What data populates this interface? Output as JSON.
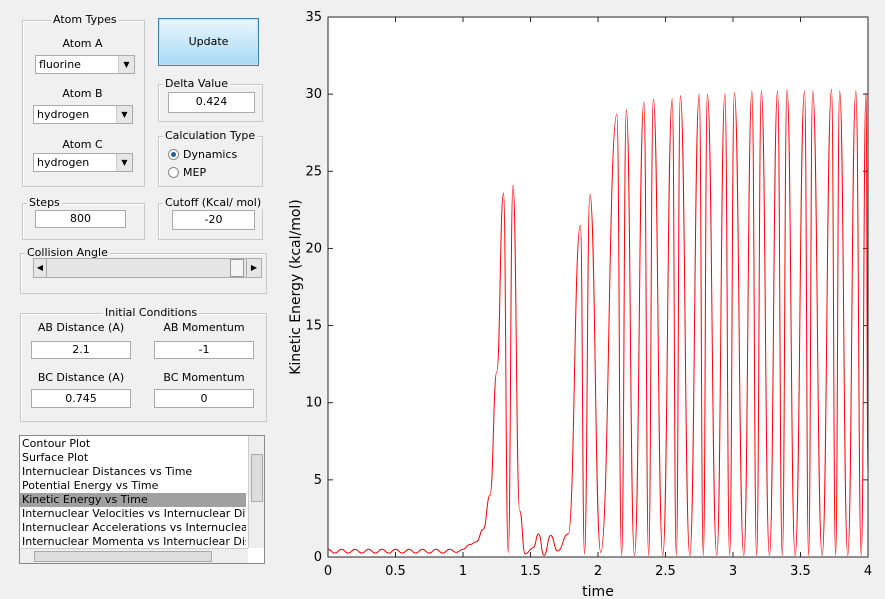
{
  "atom_types": {
    "title": "Atom Types",
    "atom_a": {
      "label": "Atom A",
      "value": "fluorine"
    },
    "atom_b": {
      "label": "Atom B",
      "value": "hydrogen"
    },
    "atom_c": {
      "label": "Atom C",
      "value": "hydrogen"
    }
  },
  "update_button": "Update",
  "delta_value": {
    "title": "Delta Value",
    "value": "0.424"
  },
  "calculation_type": {
    "title": "Calculation Type",
    "options": [
      "Dynamics",
      "MEP"
    ],
    "selected_index": 0
  },
  "steps": {
    "title": "Steps",
    "value": "800"
  },
  "cutoff": {
    "title": "Cutoff (Kcal/ mol)",
    "value": "-20"
  },
  "collision_angle": {
    "title": "Collision Angle"
  },
  "initial_conditions": {
    "title": "Initial Conditions",
    "ab_distance": {
      "label": "AB Distance (A)",
      "value": "2.1"
    },
    "ab_momentum": {
      "label": "AB Momentum",
      "value": "-1"
    },
    "bc_distance": {
      "label": "BC Distance (A)",
      "value": "0.745"
    },
    "bc_momentum": {
      "label": "BC Momentum",
      "value": "0"
    }
  },
  "plot_list": {
    "items": [
      "Contour Plot",
      "Surface Plot",
      "Internuclear Distances vs Time",
      "Potential Energy vs Time",
      "Kinetic Energy vs Time",
      "Internuclear Velocities vs Internuclear Distance",
      "Internuclear Accelerations vs Internuclear Distance",
      "Internuclear Momenta vs Internuclear Distance"
    ],
    "selected_index": 4
  },
  "chart_data": {
    "type": "line",
    "x_label": "time",
    "y_label": "Kinetic Energy (kcal/mol)",
    "color": "#ff0000",
    "x": [
      0,
      0.05,
      0.1,
      0.15,
      0.2,
      0.25,
      0.3,
      0.35,
      0.4,
      0.45,
      0.5,
      0.55,
      0.6,
      0.65,
      0.7,
      0.75,
      0.8,
      0.85,
      0.9,
      0.95,
      1.0,
      1.05,
      1.1,
      1.15,
      1.2,
      1.25,
      1.3,
      1.335,
      1.37,
      1.42,
      1.46,
      1.52,
      1.56,
      1.6,
      1.65,
      1.7,
      1.78,
      1.87,
      1.9,
      1.94,
      2.02,
      2.14,
      2.175,
      2.21,
      2.27,
      2.34,
      2.375,
      2.41,
      2.48,
      2.55,
      2.58,
      2.61,
      2.68,
      2.75,
      2.78,
      2.81,
      2.88,
      2.94,
      2.975,
      3.01,
      3.08,
      3.14,
      3.175,
      3.21,
      3.27,
      3.33,
      3.365,
      3.4,
      3.46,
      3.53,
      3.56,
      3.59,
      3.66,
      3.73,
      3.76,
      3.79,
      3.85,
      3.91,
      3.95,
      3.985,
      4.0
    ],
    "values": [
      0.5,
      0.25,
      0.5,
      0.25,
      0.5,
      0.25,
      0.5,
      0.25,
      0.5,
      0.25,
      0.5,
      0.25,
      0.5,
      0.25,
      0.5,
      0.25,
      0.5,
      0.25,
      0.5,
      0.3,
      0.5,
      0.8,
      1.0,
      1.8,
      4,
      12,
      23.6,
      0.3,
      24.1,
      3,
      0.2,
      0.6,
      1.5,
      0.1,
      1.4,
      0.4,
      1.5,
      21.5,
      0.2,
      23.5,
      0.3,
      28.7,
      0.1,
      29,
      0.1,
      29.5,
      0.1,
      29.7,
      0.1,
      29.7,
      0.1,
      29.9,
      0.1,
      30,
      0.1,
      30,
      0.1,
      30,
      0.1,
      30.1,
      0.1,
      30.2,
      0.1,
      30.2,
      0.1,
      30.2,
      0.1,
      30.3,
      0.1,
      30.2,
      0.1,
      30.2,
      0.1,
      30.3,
      0.1,
      30.2,
      0.1,
      30.2,
      0.1,
      30.1,
      5
    ],
    "xlim": [
      0,
      4
    ],
    "xticks": [
      0,
      0.5,
      1,
      1.5,
      2,
      2.5,
      3,
      3.5,
      4
    ],
    "ylim": [
      0,
      35
    ],
    "yticks": [
      0,
      5,
      10,
      15,
      20,
      25,
      30,
      35
    ]
  }
}
